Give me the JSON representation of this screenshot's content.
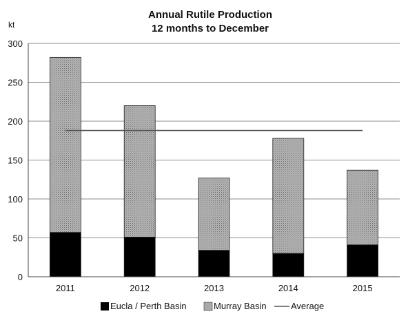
{
  "chart_data": {
    "type": "bar",
    "stacked": true,
    "title_line1": "Annual Rutile Production",
    "title_line2": "12 months to December",
    "ylabel": "kt",
    "xlabel": "",
    "categories": [
      "2011",
      "2012",
      "2013",
      "2014",
      "2015"
    ],
    "series": [
      {
        "name": "Eucla / Perth Basin",
        "values": [
          57,
          51,
          34,
          30,
          41
        ],
        "color": "#000000"
      },
      {
        "name": "Murray Basin",
        "values": [
          225,
          169,
          93,
          148,
          96
        ],
        "color": "#a9a9a9"
      }
    ],
    "average": {
      "name": "Average",
      "value": 188,
      "color": "#555555"
    },
    "ylim": [
      0,
      300
    ],
    "yticks": [
      "0",
      "50",
      "100",
      "150",
      "200",
      "250",
      "300"
    ],
    "grid": true,
    "legend_position": "bottom"
  }
}
